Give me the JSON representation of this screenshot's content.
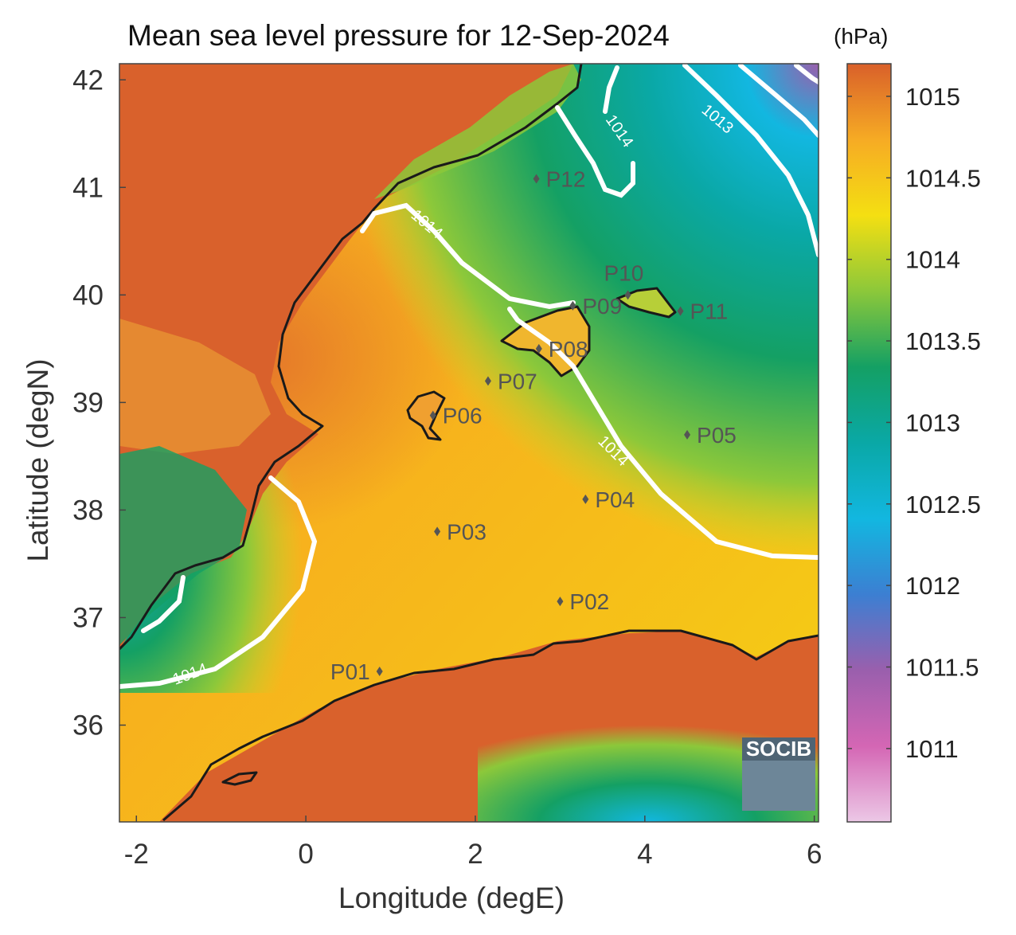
{
  "title": "Mean sea level pressure for 12-Sep-2024",
  "colorbar": {
    "unit": "(hPa)",
    "min": 1010.55,
    "max": 1015.2,
    "ticks": [
      "1011",
      "1011.5",
      "1012",
      "1012.5",
      "1013",
      "1013.5",
      "1014",
      "1014.5",
      "1015"
    ],
    "colors": [
      "#ecc8e6",
      "#d466b4",
      "#9a5fad",
      "#3c7fd2",
      "#12b7e0",
      "#0aa8a6",
      "#14a064",
      "#8cc83a",
      "#f4df12",
      "#f6ab24",
      "#d9602a"
    ]
  },
  "axes": {
    "xlabel": "Longitude (degE)",
    "ylabel": "Latitude (degN)",
    "xlim": [
      -2.2,
      6.05
    ],
    "ylim": [
      35.1,
      42.15
    ],
    "xticks": [
      "-2",
      "0",
      "2",
      "4",
      "6"
    ],
    "yticks": [
      "36",
      "37",
      "38",
      "39",
      "40",
      "41",
      "42"
    ]
  },
  "isobars": [
    {
      "level": "1013",
      "label": "1013"
    },
    {
      "level": "1014",
      "label": "1014"
    }
  ],
  "points": [
    {
      "name": "P01",
      "lon": 0.87,
      "lat": 36.5
    },
    {
      "name": "P02",
      "lon": 3.0,
      "lat": 37.15
    },
    {
      "name": "P03",
      "lon": 1.55,
      "lat": 37.8
    },
    {
      "name": "P04",
      "lon": 3.3,
      "lat": 38.1
    },
    {
      "name": "P05",
      "lon": 4.5,
      "lat": 38.7
    },
    {
      "name": "P06",
      "lon": 1.5,
      "lat": 38.88
    },
    {
      "name": "P07",
      "lon": 2.15,
      "lat": 39.2
    },
    {
      "name": "P08",
      "lon": 2.75,
      "lat": 39.5
    },
    {
      "name": "P09",
      "lon": 3.15,
      "lat": 39.9
    },
    {
      "name": "P10",
      "lon": 3.8,
      "lat": 40.0
    },
    {
      "name": "P11",
      "lon": 4.42,
      "lat": 39.85
    },
    {
      "name": "P12",
      "lon": 2.72,
      "lat": 41.08
    }
  ],
  "logo": {
    "text": "SOCIB"
  }
}
